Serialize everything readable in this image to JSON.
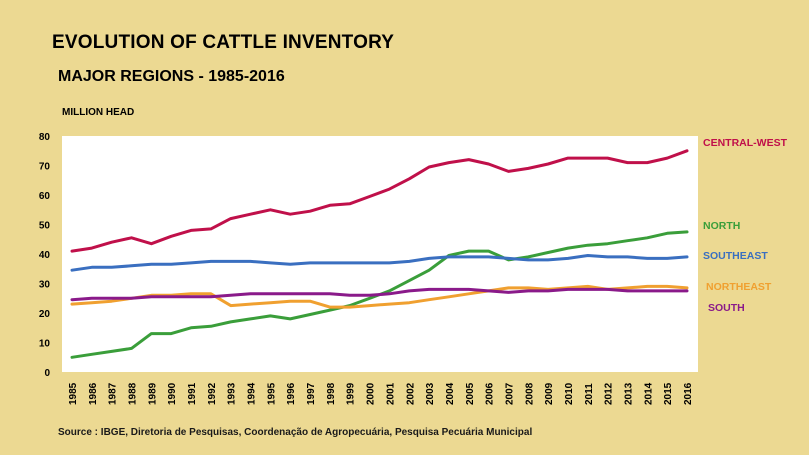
{
  "chart_data": {
    "type": "line",
    "title": "EVOLUTION OF CATTLE INVENTORY",
    "subtitle": "MAJOR REGIONS - 1985-2016",
    "ylabel": "MILLION HEAD",
    "ylim": [
      0,
      80
    ],
    "yticks": [
      0,
      10,
      20,
      30,
      40,
      50,
      60,
      70,
      80
    ],
    "grid": false,
    "legend": "right",
    "categories": [
      "1985",
      "1986",
      "1987",
      "1988",
      "1989",
      "1990",
      "1991",
      "1992",
      "1993",
      "1994",
      "1995",
      "1996",
      "1997",
      "1998",
      "1999",
      "2000",
      "2001",
      "2002",
      "2003",
      "2004",
      "2005",
      "2006",
      "2007",
      "2008",
      "2009",
      "2010",
      "2011",
      "2012",
      "2013",
      "2014",
      "2015",
      "2016"
    ],
    "series": [
      {
        "name": "CENTRAL-WEST",
        "color": "#c0104a",
        "values": [
          41,
          42,
          44,
          45.5,
          43.5,
          46,
          48,
          48.5,
          52,
          53.5,
          55,
          53.5,
          54.5,
          56.5,
          57,
          59.5,
          62,
          65.5,
          69.5,
          71,
          72,
          70.5,
          68,
          69,
          70.5,
          72.5,
          72.5,
          72.5,
          71,
          71,
          72.5,
          75
        ]
      },
      {
        "name": "NORTH",
        "color": "#3a9e3a",
        "values": [
          5,
          6,
          7,
          8,
          13,
          13,
          15,
          15.5,
          17,
          18,
          19,
          18,
          19.5,
          21,
          22.5,
          25,
          27.5,
          31,
          34.5,
          39.5,
          41,
          41,
          38,
          39,
          40.5,
          42,
          43,
          43.5,
          44.5,
          45.5,
          47,
          47.5
        ]
      },
      {
        "name": "SOUTHEAST",
        "color": "#3a6fc0",
        "values": [
          34.5,
          35.5,
          35.5,
          36,
          36.5,
          36.5,
          37,
          37.5,
          37.5,
          37.5,
          37,
          36.5,
          37,
          37,
          37,
          37,
          37,
          37.5,
          38.5,
          39,
          39,
          39,
          38.5,
          38,
          38,
          38.5,
          39.5,
          39,
          39,
          38.5,
          38.5,
          39
        ]
      },
      {
        "name": "NORTHEAST",
        "color": "#f0a030",
        "values": [
          23,
          23.5,
          24,
          25,
          26,
          26,
          26.5,
          26.5,
          22.5,
          23,
          23.5,
          24,
          24,
          22,
          22,
          22.5,
          23,
          23.5,
          24.5,
          25.5,
          26.5,
          27.5,
          28.5,
          28.5,
          28,
          28.5,
          29,
          28,
          28.5,
          29,
          29,
          28.5
        ]
      },
      {
        "name": "SOUTH",
        "color": "#8a1a8a",
        "values": [
          24.5,
          25,
          25,
          25,
          25.5,
          25.5,
          25.5,
          25.5,
          26,
          26.5,
          26.5,
          26.5,
          26.5,
          26.5,
          26,
          26,
          26.5,
          27.5,
          28,
          28,
          28,
          27.5,
          27,
          27.5,
          27.5,
          28,
          28,
          28,
          27.5,
          27.5,
          27.5,
          27.5
        ]
      }
    ]
  },
  "footer": {
    "source": "Source : IBGE, Diretoria de Pesquisas, Coordenação de Agropecuária, Pesquisa Pecuária Municipal"
  }
}
